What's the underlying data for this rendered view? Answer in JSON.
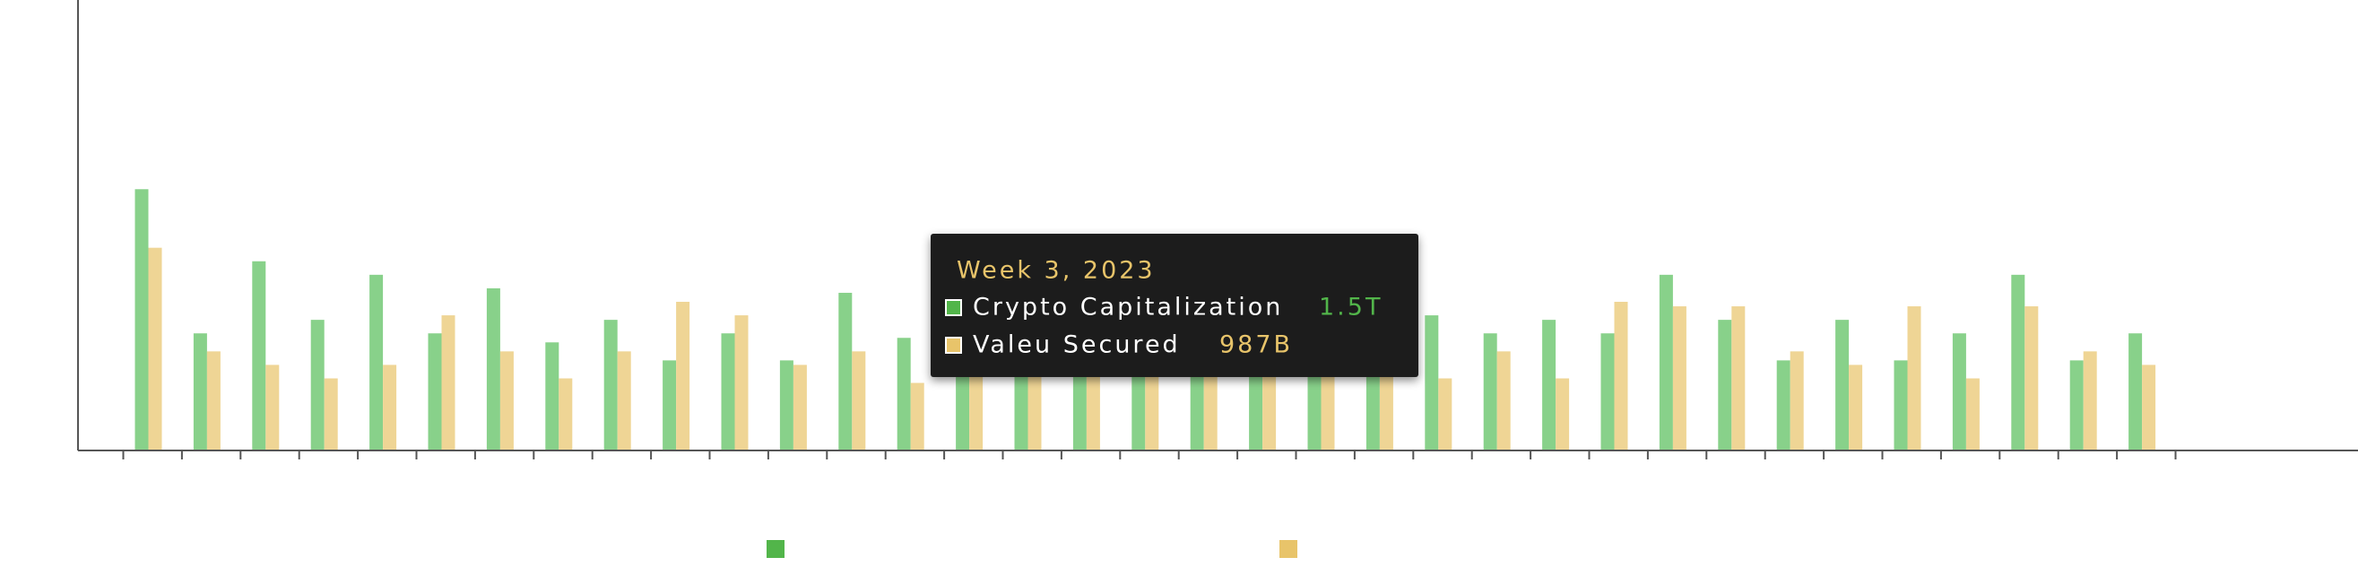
{
  "chart_data": {
    "type": "bar",
    "categories": [
      null,
      null,
      null,
      null,
      null,
      null,
      null,
      null,
      null,
      null,
      null,
      null,
      null,
      null,
      null,
      null,
      null,
      null,
      null,
      null,
      null,
      null,
      null,
      null,
      null,
      null,
      null,
      null,
      null,
      null,
      null,
      null,
      null,
      null,
      null
    ],
    "series": [
      {
        "name": "Crypto Capitalization",
        "color": "#88d18a",
        "values": [
          58,
          26,
          42,
          29,
          39,
          26,
          36,
          24,
          29,
          20,
          26,
          20,
          35,
          25,
          26,
          26,
          29,
          26,
          29,
          26,
          24,
          29,
          30,
          26,
          29,
          26,
          39,
          29,
          20,
          29,
          20,
          26,
          39,
          20,
          26
        ]
      },
      {
        "name": "Valeu Secured",
        "color": "#efd595",
        "values": [
          45,
          22,
          19,
          16,
          19,
          30,
          22,
          16,
          22,
          33,
          30,
          19,
          22,
          15,
          22,
          19,
          22,
          19,
          22,
          19,
          22,
          19,
          16,
          22,
          16,
          33,
          32,
          32,
          22,
          19,
          32,
          16,
          32,
          22,
          19
        ]
      }
    ],
    "legend_colors": [
      "#52b54a",
      "#e8c46a"
    ],
    "ylim": [
      0,
      100
    ],
    "tooltip": {
      "title": "Week 3, 2023",
      "value_labels": [
        "1.5T",
        "987B"
      ],
      "value_colors": [
        "#52b54a",
        "#e8c46a"
      ]
    }
  }
}
